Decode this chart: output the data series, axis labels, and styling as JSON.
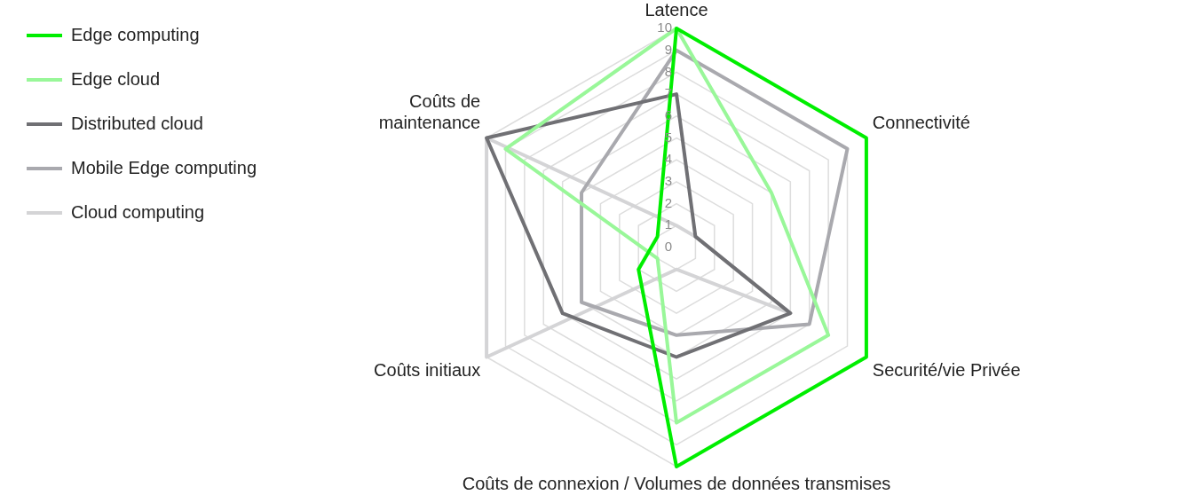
{
  "chart_data": {
    "type": "radar",
    "categories": [
      "Latence",
      "Connectivité",
      "Securité/vie Privée",
      "Coûts de connexion / Volumes de données transmises",
      "Coûts initiaux",
      "Coûts de\nmaintenance"
    ],
    "series": [
      {
        "name": "Edge computing",
        "color": "#00ee00",
        "values": [
          10,
          10,
          10,
          10,
          2,
          1
        ]
      },
      {
        "name": "Edge cloud",
        "color": "#99f799",
        "values": [
          10,
          5,
          8,
          8,
          1,
          9
        ]
      },
      {
        "name": "Distributed cloud",
        "color": "#707074",
        "values": [
          7,
          1,
          6,
          5,
          6,
          10
        ]
      },
      {
        "name": "Mobile Edge computing",
        "color": "#a9a9ae",
        "values": [
          9,
          9,
          7,
          4,
          5,
          5
        ]
      },
      {
        "name": "Cloud computing",
        "color": "#d4d4d6",
        "values": [
          1,
          1,
          6,
          1,
          10,
          10
        ]
      }
    ],
    "ylim": [
      0,
      10
    ],
    "yticks": [
      0,
      1,
      2,
      3,
      4,
      5,
      6,
      7,
      8,
      9,
      10
    ],
    "grid": true,
    "legend": "left",
    "marker": "none"
  }
}
